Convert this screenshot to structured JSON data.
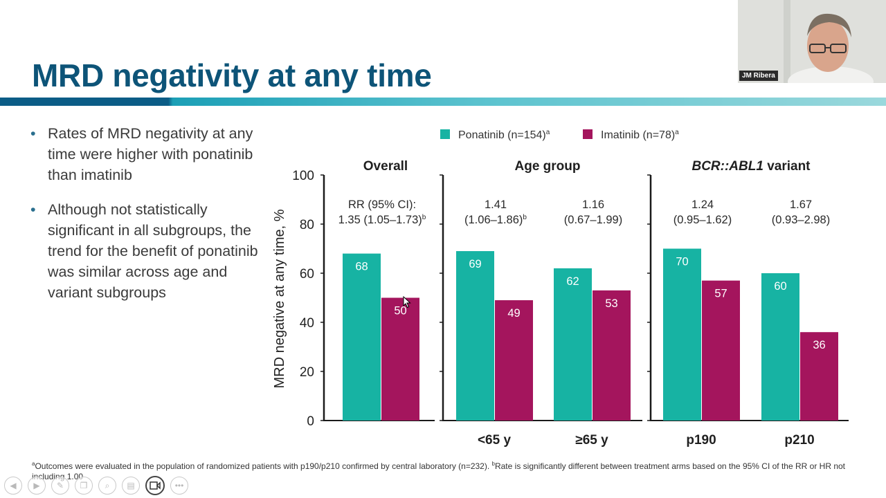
{
  "slide": {
    "title": "MRD negativity at any time",
    "bullets": [
      "Rates of MRD negativity at any time were higher with ponatinib than imatinib",
      "Although not statistically significant in all subgroups, the trend for the benefit of ponatinib was similar across age and variant subgroups"
    ],
    "footnote": {
      "a_marker": "a",
      "a_text": "Outcomes were evaluated in the population of randomized patients with p190/p210 confirmed by central laboratory (n=232). ",
      "b_marker": "b",
      "b_text": "Rate is significantly different between treatment arms based on the 95% CI of the RR or HR not including 1.00"
    }
  },
  "presenter": {
    "name": "JM Ribera"
  },
  "colors": {
    "ponatinib": "#17b3a3",
    "imatinib": "#a4155d",
    "title": "#0d5478",
    "axis": "#1a1a1a"
  },
  "toolbar_icons": [
    "back-icon",
    "forward-icon",
    "pen-icon",
    "copy-icon",
    "zoom-icon",
    "subtitles-icon",
    "video-icon",
    "more-icon"
  ],
  "chart_data": {
    "type": "bar",
    "ylabel": "MRD negative at any time, %",
    "ylim": [
      0,
      100
    ],
    "yticks": [
      0,
      20,
      40,
      60,
      80,
      100
    ],
    "legend": {
      "placement": "top",
      "entries": [
        {
          "name": "Ponatinib (n=154)",
          "sup": "a"
        },
        {
          "name": "Imatinib (n=78)",
          "sup": "a"
        }
      ]
    },
    "panels": [
      {
        "title": "Overall",
        "title_italic": "",
        "title_rest": "",
        "groups": [
          {
            "label": "",
            "rr_lines": [
              "RR (95% CI):",
              "1.35 (1.05–1.73)"
            ],
            "rr_sup": "b",
            "ponatinib": 68,
            "imatinib": 50
          }
        ]
      },
      {
        "title": "Age group",
        "title_italic": "",
        "title_rest": "",
        "groups": [
          {
            "label": "<65 y",
            "rr_lines": [
              "1.41",
              "(1.06–1.86)"
            ],
            "rr_sup": "b",
            "ponatinib": 69,
            "imatinib": 49
          },
          {
            "label": "≥65 y",
            "rr_lines": [
              "1.16",
              "(0.67–1.99)"
            ],
            "rr_sup": "",
            "ponatinib": 62,
            "imatinib": 53
          }
        ]
      },
      {
        "title": "",
        "title_italic": "BCR::ABL1",
        "title_rest": " variant",
        "groups": [
          {
            "label": "p190",
            "rr_lines": [
              "1.24",
              "(0.95–1.62)"
            ],
            "rr_sup": "",
            "ponatinib": 70,
            "imatinib": 57
          },
          {
            "label": "p210",
            "rr_lines": [
              "1.67",
              "(0.93–2.98)"
            ],
            "rr_sup": "",
            "ponatinib": 60,
            "imatinib": 36
          }
        ]
      }
    ]
  }
}
